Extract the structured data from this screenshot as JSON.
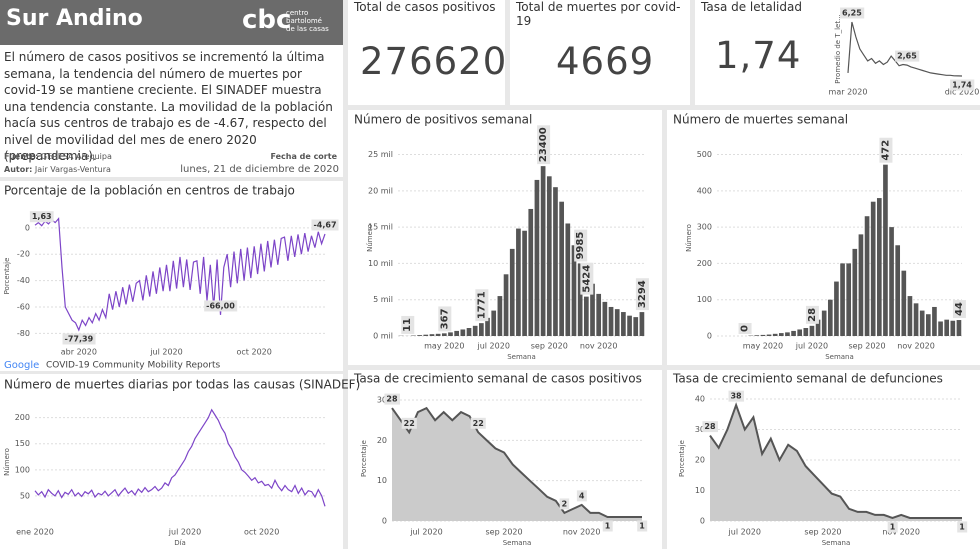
{
  "header": {
    "title": "Sur Andino",
    "logo": "cbc",
    "logo_lines": [
      "centro",
      "bartolomé",
      "de las casas"
    ],
    "description": "El número de casos positivos se incrementó la última semana, la tendencia del número de muertes por covid-19 se mantiene creciente. El SINADEF muestra una tendencia constante. La movilidad de la población hacía sus centros de trabajo es de -4.67, respecto del nivel de movilidad del mes de enero 2020 (prepandemia).",
    "source_label": "Fuente:",
    "source": "GERESA Arequipa",
    "author_label": "Autor:",
    "author": "Jair Vargas-Ventura",
    "cutoff_label": "Fecha de corte",
    "cutoff": "lunes, 21 de diciembre de 2020"
  },
  "kpis": [
    {
      "title": "Total de casos positivos",
      "value": 276620
    },
    {
      "title": "Total de muertes por covid-19",
      "value": 4669
    },
    {
      "title": "Tasa de letalidad",
      "value": "1,74"
    }
  ],
  "chart_data": [
    {
      "type": "line",
      "title": "Porcentaje de la población en centros de trabajo",
      "y_label": "Porcentaje",
      "color": "#7d45c8",
      "source_logo": "Google",
      "source": "COVID-19 Community Mobility Reports",
      "categories": [
        null,
        null,
        null,
        null,
        null,
        null,
        null,
        null,
        null,
        null,
        null,
        null,
        null,
        "abr 2020",
        null,
        null,
        null,
        null,
        null,
        null,
        null,
        null,
        null,
        null,
        null,
        null,
        null,
        null,
        null,
        null,
        null,
        null,
        null,
        null,
        null,
        null,
        null,
        null,
        null,
        "jul 2020",
        null,
        null,
        null,
        null,
        null,
        null,
        null,
        null,
        null,
        null,
        null,
        null,
        null,
        null,
        null,
        null,
        null,
        null,
        null,
        null,
        null,
        null,
        null,
        null,
        null,
        "oct 2020",
        null,
        null,
        null,
        null,
        null,
        null,
        null,
        null,
        null,
        null,
        null,
        null,
        null,
        null,
        null,
        null,
        null,
        null,
        null,
        null,
        null
      ],
      "values": [
        2,
        4,
        1.63,
        5,
        3,
        6,
        4,
        7,
        -30,
        -60,
        -65,
        -70,
        -72,
        -77.39,
        -70,
        -74,
        -68,
        -72,
        -65,
        -70,
        -62,
        -68,
        -50,
        -62,
        -48,
        -60,
        -45,
        -58,
        -43,
        -56,
        -42,
        -40,
        -55,
        -36,
        -52,
        -33,
        -50,
        -30,
        -48,
        -28,
        -48,
        -25,
        -46,
        -22,
        -45,
        -24,
        -47,
        -26,
        -25,
        -50,
        -22,
        -55,
        -28,
        -60,
        -24,
        -66,
        -30,
        -20,
        -45,
        -18,
        -42,
        -16,
        -40,
        -15,
        -38,
        -14,
        -35,
        -12,
        -33,
        -10,
        -30,
        -9,
        -28,
        -8,
        -7,
        -25,
        -6,
        -22,
        -5,
        -20,
        -4,
        -18,
        -6,
        -15,
        -3,
        -12,
        -4.67
      ],
      "value_labels": [
        null,
        null,
        "1,63",
        null,
        null,
        null,
        null,
        null,
        null,
        null,
        null,
        null,
        null,
        "-77,39",
        null,
        null,
        null,
        null,
        null,
        null,
        null,
        null,
        null,
        null,
        null,
        null,
        null,
        null,
        null,
        null,
        null,
        null,
        null,
        null,
        null,
        null,
        null,
        null,
        null,
        null,
        null,
        null,
        null,
        null,
        null,
        null,
        null,
        null,
        null,
        null,
        null,
        null,
        null,
        null,
        null,
        "-66,00",
        null,
        null,
        null,
        null,
        null,
        null,
        null,
        null,
        null,
        null,
        null,
        null,
        null,
        null,
        null,
        null,
        null,
        null,
        null,
        null,
        null,
        null,
        null,
        null,
        null,
        null,
        null,
        null,
        null,
        null,
        "-4,67"
      ],
      "ylim": [
        -85,
        12
      ],
      "yticks": [
        0,
        -20,
        -40,
        -60,
        -80
      ],
      "grid": true
    },
    {
      "type": "line",
      "title": "Número de muertes diarias por todas las causas (SINADEF)",
      "y_label": "Número",
      "x_label": "Día",
      "color": "#7d45c8",
      "categories": [
        "ene 2020",
        null,
        null,
        null,
        null,
        null,
        null,
        null,
        null,
        null,
        null,
        null,
        null,
        null,
        null,
        null,
        null,
        null,
        null,
        null,
        null,
        null,
        null,
        null,
        null,
        null,
        null,
        null,
        null,
        null,
        null,
        null,
        null,
        null,
        null,
        null,
        null,
        null,
        null,
        null,
        null,
        null,
        null,
        null,
        null,
        "jul 2020",
        null,
        null,
        null,
        null,
        null,
        null,
        null,
        null,
        null,
        null,
        null,
        null,
        null,
        null,
        null,
        null,
        null,
        null,
        null,
        null,
        null,
        null,
        "oct 2020",
        null,
        null,
        null,
        null,
        null,
        null,
        null,
        null,
        null,
        null,
        null,
        null,
        null,
        null,
        null,
        null,
        null,
        null,
        null
      ],
      "values": [
        60,
        52,
        58,
        48,
        62,
        55,
        50,
        60,
        47,
        57,
        53,
        62,
        50,
        56,
        49,
        58,
        54,
        61,
        48,
        55,
        52,
        59,
        50,
        56,
        62,
        50,
        58,
        65,
        55,
        60,
        52,
        63,
        57,
        66,
        58,
        62,
        68,
        60,
        65,
        75,
        70,
        85,
        90,
        100,
        110,
        120,
        135,
        145,
        160,
        170,
        180,
        190,
        200,
        215,
        205,
        195,
        180,
        170,
        150,
        140,
        125,
        115,
        100,
        95,
        88,
        80,
        85,
        75,
        78,
        70,
        72,
        65,
        80,
        68,
        60,
        70,
        62,
        58,
        70,
        55,
        65,
        52,
        60,
        58,
        48,
        62,
        50,
        30
      ],
      "ylim": [
        0,
        230
      ],
      "yticks": [
        50,
        100,
        150,
        200
      ],
      "grid": true
    },
    {
      "type": "line",
      "y_label": "Promedio de T_let...",
      "color": "#555555",
      "categories": [
        "mar 2020",
        null,
        null,
        null,
        null,
        null,
        null,
        null,
        null,
        null,
        null,
        null,
        null,
        null,
        null,
        null,
        null,
        null,
        null,
        null,
        null,
        null,
        null,
        null,
        null,
        null,
        null,
        null,
        null,
        "dic 2020"
      ],
      "values": [
        2.0,
        6.25,
        5.0,
        4.0,
        3.5,
        3.0,
        3.2,
        2.8,
        3.0,
        2.7,
        2.9,
        3.4,
        3.0,
        2.6,
        2.7,
        2.65,
        2.5,
        2.4,
        2.3,
        2.2,
        2.1,
        2.0,
        1.95,
        1.9,
        1.85,
        1.8,
        1.8,
        1.76,
        1.75,
        1.74
      ],
      "value_labels": [
        null,
        "6,25",
        null,
        null,
        null,
        null,
        null,
        null,
        null,
        null,
        null,
        null,
        null,
        null,
        null,
        "2,65",
        null,
        null,
        null,
        null,
        null,
        null,
        null,
        null,
        null,
        null,
        null,
        null,
        null,
        "1,74"
      ]
    },
    {
      "type": "bar",
      "title": "Número de positivos semanal",
      "y_label": "Número",
      "x_label": "Semana",
      "color": "#555555",
      "categories": [
        null,
        null,
        null,
        null,
        null,
        null,
        null,
        "may 2020",
        null,
        null,
        null,
        null,
        null,
        null,
        null,
        "jul 2020",
        null,
        null,
        null,
        null,
        null,
        null,
        null,
        null,
        "sep 2020",
        null,
        null,
        null,
        null,
        null,
        null,
        null,
        "nov 2020",
        null,
        null,
        null,
        null,
        null,
        null,
        null
      ],
      "values": [
        30,
        11,
        60,
        120,
        180,
        250,
        300,
        367,
        500,
        700,
        900,
        1100,
        1400,
        1771,
        2500,
        3500,
        5500,
        8500,
        12000,
        14800,
        14500,
        17500,
        21500,
        23400,
        22000,
        20500,
        18500,
        15500,
        12500,
        9985,
        5424,
        7200,
        5800,
        4700,
        4000,
        3700,
        3300,
        2800,
        2600,
        3294
      ],
      "value_labels": [
        null,
        "11",
        null,
        null,
        null,
        null,
        null,
        "367",
        null,
        null,
        null,
        null,
        null,
        "1771",
        null,
        null,
        null,
        null,
        null,
        null,
        null,
        null,
        null,
        "23400",
        null,
        null,
        null,
        null,
        null,
        "9985",
        "5424",
        null,
        null,
        null,
        null,
        null,
        null,
        null,
        null,
        "3294"
      ],
      "ylim": [
        0,
        27000
      ],
      "yticks": [
        {
          "value": 0,
          "label": "0 mil"
        },
        {
          "value": 5000,
          "label": "5 mil"
        },
        {
          "value": 10000,
          "label": "10 mil"
        },
        {
          "value": 15000,
          "label": "15 mil"
        },
        {
          "value": 20000,
          "label": "20 mil"
        },
        {
          "value": 25000,
          "label": "25 mil"
        }
      ],
      "grid": true
    },
    {
      "type": "bar",
      "title": "Número de muertes semanal",
      "y_label": "Número",
      "x_label": "Semana",
      "color": "#555555",
      "categories": [
        null,
        null,
        null,
        null,
        null,
        null,
        null,
        "may 2020",
        null,
        null,
        null,
        null,
        null,
        null,
        null,
        "jul 2020",
        null,
        null,
        null,
        null,
        null,
        null,
        null,
        null,
        "sep 2020",
        null,
        null,
        null,
        null,
        null,
        null,
        null,
        "nov 2020",
        null,
        null,
        null,
        null,
        null,
        null,
        null
      ],
      "values": [
        0,
        0,
        0,
        0,
        0,
        1,
        2,
        3,
        4,
        6,
        8,
        10,
        14,
        18,
        22,
        28,
        45,
        70,
        100,
        150,
        200,
        200,
        240,
        280,
        330,
        370,
        380,
        472,
        300,
        250,
        180,
        110,
        90,
        70,
        60,
        80,
        40,
        45,
        42,
        44
      ],
      "value_labels": [
        null,
        null,
        null,
        null,
        "0",
        null,
        null,
        null,
        null,
        null,
        null,
        null,
        null,
        null,
        null,
        "28",
        null,
        null,
        null,
        null,
        null,
        null,
        null,
        null,
        null,
        null,
        null,
        "472",
        null,
        null,
        null,
        null,
        null,
        null,
        null,
        null,
        null,
        null,
        null,
        "44"
      ],
      "ylim": [
        0,
        540
      ],
      "yticks": [
        0,
        100,
        200,
        300,
        400,
        500
      ],
      "grid": true
    },
    {
      "type": "area",
      "title": "Tasa de crecimiento semanal de casos positivos",
      "y_label": "Porcentaje",
      "x_label": "Semana",
      "color": "#555555",
      "fill": "#cbcbcb",
      "categories": [
        null,
        null,
        null,
        null,
        "jul 2020",
        null,
        null,
        null,
        null,
        null,
        null,
        null,
        null,
        "sep 2020",
        null,
        null,
        null,
        null,
        null,
        null,
        null,
        null,
        "nov 2020",
        null,
        null,
        null,
        null,
        null,
        null,
        null
      ],
      "values": [
        28,
        25,
        22,
        27,
        28,
        25,
        27,
        25,
        27,
        26,
        22,
        20,
        18,
        17,
        14,
        12,
        10,
        8,
        6,
        5,
        2,
        3,
        4,
        2,
        2,
        1,
        1,
        1,
        1,
        1
      ],
      "value_labels": [
        "28",
        null,
        "22",
        null,
        null,
        null,
        null,
        null,
        null,
        null,
        "22",
        null,
        null,
        null,
        null,
        null,
        null,
        null,
        null,
        null,
        "2",
        null,
        "4",
        null,
        null,
        "1",
        null,
        null,
        null,
        "1"
      ],
      "ylim": [
        0,
        31
      ],
      "yticks": [
        0,
        10,
        20,
        30
      ],
      "grid": true
    },
    {
      "type": "area",
      "title": "Tasa de crecimiento semanal de defunciones",
      "y_label": "Porcentaje",
      "x_label": "Semana",
      "color": "#555555",
      "fill": "#cbcbcb",
      "categories": [
        null,
        null,
        null,
        null,
        "jul 2020",
        null,
        null,
        null,
        null,
        null,
        null,
        null,
        null,
        "sep 2020",
        null,
        null,
        null,
        null,
        null,
        null,
        null,
        null,
        "nov 2020",
        null,
        null,
        null,
        null,
        null,
        null,
        null
      ],
      "values": [
        28,
        24,
        30,
        38,
        30,
        34,
        22,
        27,
        20,
        25,
        23,
        18,
        15,
        12,
        9,
        8,
        4,
        3,
        3,
        2,
        2,
        1,
        2,
        1,
        1,
        1,
        1,
        1,
        1,
        1
      ],
      "value_labels": [
        "28",
        null,
        null,
        "38",
        null,
        null,
        null,
        null,
        null,
        null,
        null,
        null,
        null,
        null,
        null,
        null,
        null,
        null,
        null,
        null,
        null,
        "1",
        null,
        null,
        null,
        null,
        null,
        null,
        null,
        "1"
      ],
      "ylim": [
        0,
        41
      ],
      "yticks": [
        0,
        10,
        20,
        30,
        40
      ],
      "grid": true
    }
  ]
}
